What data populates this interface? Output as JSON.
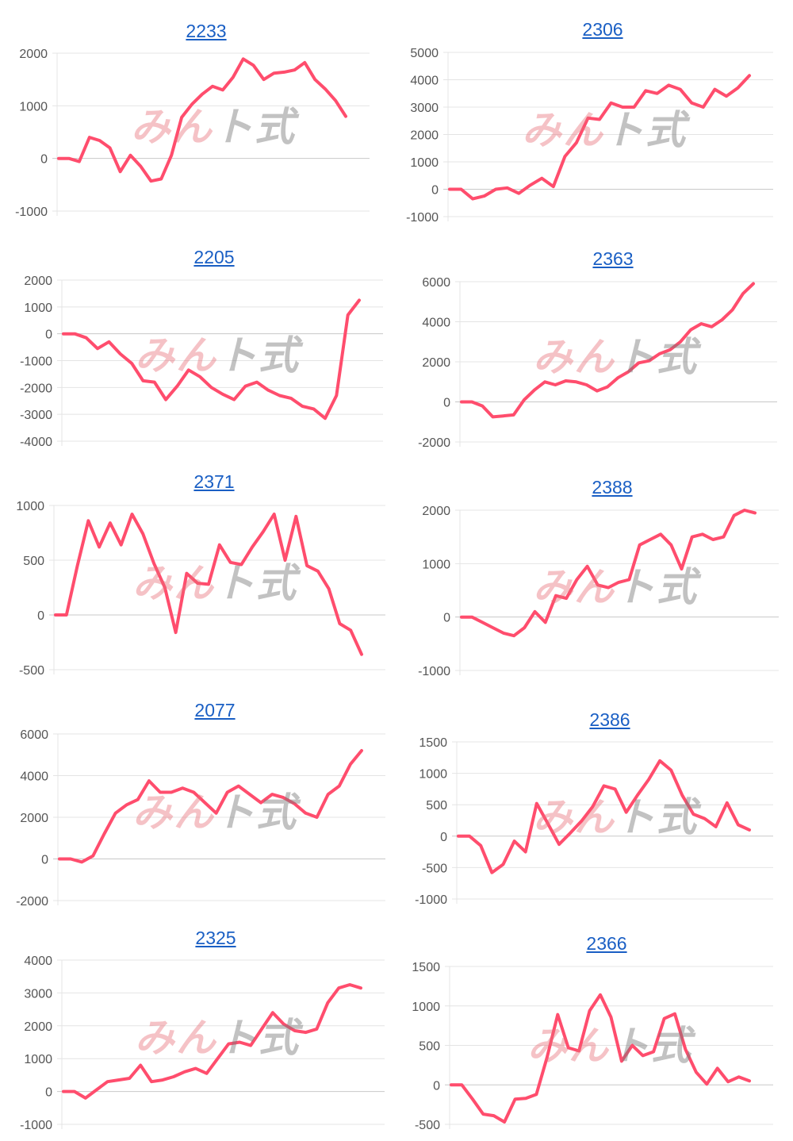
{
  "line_color": "#ff4d6d",
  "grid_color": "#e4e4e4",
  "watermark": {
    "part1": "みん",
    "part2": "ト式"
  },
  "chart_data": [
    {
      "type": "line",
      "title": "2233",
      "ylim": [
        -1000,
        2000
      ],
      "ticks": [
        "2000",
        "1000",
        "0",
        "-1000"
      ],
      "tick_values": [
        2000,
        1000,
        0,
        -1000
      ],
      "values": [
        0,
        0,
        -60,
        400,
        340,
        200,
        -250,
        60,
        -150,
        -430,
        -390,
        60,
        780,
        1030,
        1220,
        1370,
        1300,
        1540,
        1890,
        1770,
        1500,
        1620,
        1640,
        1680,
        1820,
        1500,
        1320,
        1100,
        800
      ]
    },
    {
      "type": "line",
      "title": "2306",
      "ylim": [
        -1000,
        5000
      ],
      "ticks": [
        "5000",
        "4000",
        "3000",
        "2000",
        "1000",
        "0",
        "-1000"
      ],
      "tick_values": [
        5000,
        4000,
        3000,
        2000,
        1000,
        0,
        -1000
      ],
      "values": [
        0,
        0,
        -350,
        -250,
        0,
        50,
        -150,
        150,
        400,
        100,
        1200,
        1700,
        2600,
        2550,
        3150,
        3000,
        3000,
        3600,
        3500,
        3800,
        3650,
        3150,
        3000,
        3650,
        3400,
        3700,
        4150
      ]
    },
    {
      "type": "line",
      "title": "2205",
      "ylim": [
        -4000,
        2000
      ],
      "ticks": [
        "2000",
        "1000",
        "0",
        "-1000",
        "-2000",
        "-3000",
        "-4000"
      ],
      "tick_values": [
        2000,
        1000,
        0,
        -1000,
        -2000,
        -3000,
        -4000
      ],
      "values": [
        0,
        0,
        -150,
        -550,
        -300,
        -750,
        -1100,
        -1750,
        -1800,
        -2450,
        -1950,
        -1350,
        -1600,
        -2000,
        -2250,
        -2450,
        -1950,
        -1800,
        -2100,
        -2300,
        -2400,
        -2700,
        -2800,
        -3150,
        -2300,
        700,
        1250
      ]
    },
    {
      "type": "line",
      "title": "2363",
      "ylim": [
        -2000,
        6000
      ],
      "ticks": [
        "6000",
        "4000",
        "2000",
        "0",
        "-2000"
      ],
      "tick_values": [
        6000,
        4000,
        2000,
        0,
        -2000
      ],
      "values": [
        0,
        0,
        -200,
        -750,
        -700,
        -650,
        100,
        600,
        1000,
        850,
        1050,
        1000,
        850,
        550,
        750,
        1200,
        1500,
        1950,
        2050,
        2400,
        2600,
        3000,
        3600,
        3900,
        3750,
        4100,
        4600,
        5400,
        5900
      ]
    },
    {
      "type": "line",
      "title": "2371",
      "ylim": [
        -500,
        1000
      ],
      "ticks": [
        "1000",
        "500",
        "0",
        "-500"
      ],
      "tick_values": [
        1000,
        500,
        0,
        -500
      ],
      "values": [
        0,
        0,
        450,
        860,
        620,
        840,
        640,
        920,
        740,
        470,
        250,
        -160,
        380,
        290,
        280,
        640,
        480,
        460,
        620,
        760,
        920,
        500,
        900,
        450,
        400,
        240,
        -80,
        -140,
        -360
      ]
    },
    {
      "type": "line",
      "title": "2388",
      "ylim": [
        -1000,
        2000
      ],
      "ticks": [
        "2000",
        "1000",
        "0",
        "-1000"
      ],
      "tick_values": [
        2000,
        1000,
        0,
        -1000
      ],
      "values": [
        0,
        0,
        -100,
        -200,
        -300,
        -350,
        -200,
        100,
        -100,
        400,
        350,
        700,
        950,
        600,
        550,
        650,
        700,
        1350,
        1450,
        1550,
        1350,
        900,
        1500,
        1550,
        1450,
        1500,
        1900,
        2000,
        1950
      ]
    },
    {
      "type": "line",
      "title": "2077",
      "ylim": [
        -2000,
        6000
      ],
      "ticks": [
        "6000",
        "4000",
        "2000",
        "0",
        "-2000"
      ],
      "tick_values": [
        6000,
        4000,
        2000,
        0,
        -2000
      ],
      "values": [
        0,
        0,
        -150,
        150,
        1200,
        2200,
        2600,
        2850,
        3750,
        3200,
        3200,
        3400,
        3200,
        2700,
        2200,
        3200,
        3500,
        3100,
        2700,
        3100,
        2950,
        2650,
        2200,
        2000,
        3100,
        3500,
        4550,
        5200
      ]
    },
    {
      "type": "line",
      "title": "2386",
      "ylim": [
        -1000,
        1500
      ],
      "ticks": [
        "1500",
        "1000",
        "500",
        "0",
        "-500",
        "-1000"
      ],
      "tick_values": [
        1500,
        1000,
        500,
        0,
        -500,
        -1000
      ],
      "values": [
        0,
        0,
        -150,
        -580,
        -450,
        -80,
        -250,
        520,
        200,
        -130,
        50,
        240,
        470,
        800,
        750,
        380,
        650,
        900,
        1200,
        1050,
        650,
        350,
        280,
        150,
        530,
        180,
        100
      ]
    },
    {
      "type": "line",
      "title": "2325",
      "ylim": [
        -1000,
        4000
      ],
      "ticks": [
        "4000",
        "3000",
        "2000",
        "1000",
        "0",
        "-1000"
      ],
      "tick_values": [
        4000,
        3000,
        2000,
        1000,
        0,
        -1000
      ],
      "values": [
        0,
        0,
        -200,
        50,
        300,
        350,
        400,
        800,
        300,
        350,
        450,
        600,
        700,
        550,
        1000,
        1450,
        1500,
        1400,
        1900,
        2400,
        2050,
        1850,
        1800,
        1900,
        2700,
        3150,
        3250,
        3150
      ]
    },
    {
      "type": "line",
      "title": "2366",
      "ylim": [
        -500,
        1500
      ],
      "ticks": [
        "1500",
        "1000",
        "500",
        "0",
        "-500"
      ],
      "tick_values": [
        1500,
        1000,
        500,
        0,
        -500
      ],
      "values": [
        0,
        0,
        -180,
        -370,
        -390,
        -470,
        -180,
        -170,
        -120,
        350,
        890,
        470,
        430,
        940,
        1140,
        860,
        300,
        500,
        370,
        420,
        840,
        900,
        450,
        160,
        10,
        210,
        40,
        100,
        50
      ]
    }
  ]
}
